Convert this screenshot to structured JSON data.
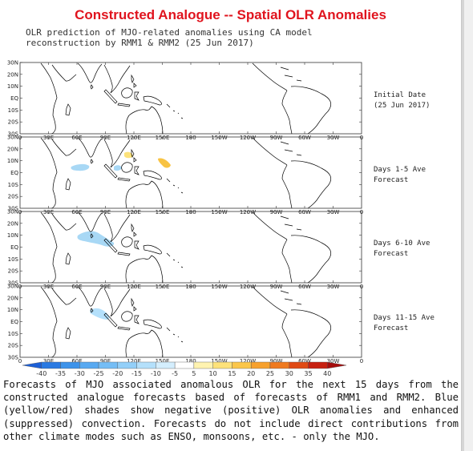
{
  "title": "Constructed Analogue -- Spatial OLR Anomalies",
  "subtitle": "OLR prediction of MJO-related anomalies using CA model\nreconstruction by RMM1 & RMM2 (25 Jun 2017)",
  "lat_labels": [
    "30N",
    "20N",
    "10N",
    "EQ",
    "10S",
    "20S",
    "30S"
  ],
  "lon_labels": [
    "0",
    "30E",
    "60E",
    "90E",
    "120E",
    "150E",
    "180",
    "150W",
    "120W",
    "90W",
    "60W",
    "30W",
    "0"
  ],
  "panels": [
    {
      "label_line1": "Initial Date",
      "label_line2": "(25 Jun 2017)"
    },
    {
      "label_line1": "Days 1-5 Ave",
      "label_line2": "Forecast"
    },
    {
      "label_line1": "Days 6-10 Ave",
      "label_line2": "Forecast"
    },
    {
      "label_line1": "Days 11-15 Ave",
      "label_line2": "Forecast"
    }
  ],
  "colorbar": {
    "ticks": [
      "-40",
      "-35",
      "-30",
      "-25",
      "-20",
      "-15",
      "-10",
      "-5",
      "5",
      "10",
      "15",
      "20",
      "25",
      "30",
      "35",
      "40"
    ],
    "colors": [
      "#1c5fd6",
      "#2a7ae2",
      "#3d93ea",
      "#58a9f1",
      "#75bdf5",
      "#93cff8",
      "#b4e0fb",
      "#d4eefd",
      "#ffffff",
      "#fff3b0",
      "#fde27a",
      "#fbc64a",
      "#f7a12d",
      "#ef7a1f",
      "#e04a14",
      "#c72010",
      "#a50d0d"
    ]
  },
  "caption": "Forecasts of MJO associated anomalous OLR for the next 15 days from the constructed analogue forecasts based of forecasts of RMM1 and RMM2. Blue (yellow/red) shades show negative (positive) OLR anomalies and enhanced (suppressed) convection. Forecasts do not include direct contributions from other climate modes such as ENSO, monsoons, etc. - only the MJO."
}
